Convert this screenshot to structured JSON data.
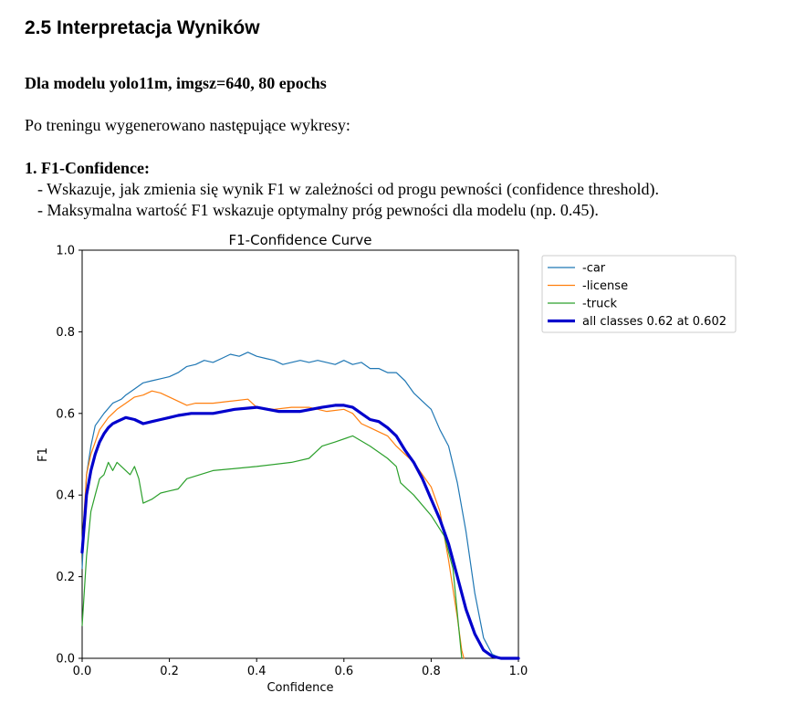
{
  "section_title": "2.5 Interpretacja Wyników",
  "model_heading": "Dla modelu yolo11m, imgsz=640, 80 epochs",
  "intro": "Po treningu wygenerowano następujące wykresy:",
  "list": {
    "item1_title": "1. F1-Confidence:",
    "bullets": [
      "- Wskazuje, jak zmienia się wynik F1 w zależności od progu pewności (confidence threshold).",
      "- Maksymalna wartość F1 wskazuje optymalny próg pewności dla modelu (np. 0.45)."
    ]
  },
  "chart_data": {
    "type": "line",
    "title": "F1-Confidence Curve",
    "xlabel": "Confidence",
    "ylabel": "F1",
    "xlim": [
      0,
      1
    ],
    "ylim": [
      0,
      1
    ],
    "xticks": [
      "0.0",
      "0.2",
      "0.4",
      "0.6",
      "0.8",
      "1.0"
    ],
    "yticks": [
      "0.0",
      "0.2",
      "0.4",
      "0.6",
      "0.8",
      "1.0"
    ],
    "legend_position": "outside-top-right",
    "series": [
      {
        "name": "-car",
        "color": "#1f77b4",
        "width": 1.2,
        "x": [
          0.0,
          0.01,
          0.02,
          0.03,
          0.05,
          0.07,
          0.09,
          0.1,
          0.12,
          0.14,
          0.16,
          0.18,
          0.2,
          0.22,
          0.24,
          0.26,
          0.28,
          0.3,
          0.32,
          0.34,
          0.36,
          0.38,
          0.4,
          0.42,
          0.44,
          0.46,
          0.48,
          0.5,
          0.52,
          0.54,
          0.56,
          0.58,
          0.6,
          0.62,
          0.64,
          0.66,
          0.68,
          0.7,
          0.72,
          0.74,
          0.76,
          0.78,
          0.8,
          0.82,
          0.84,
          0.86,
          0.88,
          0.9,
          0.92,
          0.94,
          0.96,
          0.98,
          1.0
        ],
        "y": [
          0.22,
          0.45,
          0.52,
          0.57,
          0.6,
          0.625,
          0.635,
          0.645,
          0.66,
          0.675,
          0.68,
          0.685,
          0.69,
          0.7,
          0.715,
          0.72,
          0.73,
          0.725,
          0.735,
          0.745,
          0.74,
          0.75,
          0.74,
          0.735,
          0.73,
          0.72,
          0.725,
          0.73,
          0.725,
          0.73,
          0.725,
          0.72,
          0.73,
          0.72,
          0.725,
          0.71,
          0.71,
          0.7,
          0.7,
          0.68,
          0.65,
          0.63,
          0.61,
          0.56,
          0.52,
          0.43,
          0.31,
          0.16,
          0.05,
          0.01,
          0.0,
          0.0,
          0.0
        ]
      },
      {
        "name": "-license",
        "color": "#ff7f0e",
        "width": 1.2,
        "x": [
          0.0,
          0.01,
          0.02,
          0.04,
          0.06,
          0.08,
          0.1,
          0.12,
          0.14,
          0.16,
          0.18,
          0.2,
          0.22,
          0.24,
          0.26,
          0.3,
          0.34,
          0.38,
          0.4,
          0.44,
          0.48,
          0.52,
          0.56,
          0.6,
          0.62,
          0.64,
          0.66,
          0.68,
          0.7,
          0.72,
          0.74,
          0.76,
          0.78,
          0.8,
          0.82,
          0.84,
          0.86,
          0.87,
          0.875
        ],
        "y": [
          0.28,
          0.45,
          0.5,
          0.56,
          0.59,
          0.61,
          0.625,
          0.64,
          0.645,
          0.655,
          0.65,
          0.64,
          0.63,
          0.62,
          0.625,
          0.625,
          0.63,
          0.635,
          0.615,
          0.61,
          0.615,
          0.615,
          0.605,
          0.61,
          0.6,
          0.575,
          0.565,
          0.555,
          0.545,
          0.52,
          0.5,
          0.48,
          0.45,
          0.42,
          0.36,
          0.24,
          0.1,
          0.02,
          0.0
        ]
      },
      {
        "name": "-truck",
        "color": "#2ca02c",
        "width": 1.2,
        "x": [
          0.0,
          0.01,
          0.02,
          0.03,
          0.04,
          0.05,
          0.06,
          0.07,
          0.08,
          0.09,
          0.1,
          0.11,
          0.12,
          0.13,
          0.14,
          0.16,
          0.18,
          0.2,
          0.22,
          0.24,
          0.3,
          0.4,
          0.48,
          0.52,
          0.55,
          0.58,
          0.62,
          0.66,
          0.7,
          0.72,
          0.73,
          0.76,
          0.8,
          0.83,
          0.85,
          0.87
        ],
        "y": [
          0.08,
          0.25,
          0.36,
          0.4,
          0.44,
          0.45,
          0.48,
          0.46,
          0.48,
          0.47,
          0.46,
          0.45,
          0.47,
          0.44,
          0.38,
          0.39,
          0.405,
          0.41,
          0.415,
          0.44,
          0.46,
          0.47,
          0.48,
          0.49,
          0.52,
          0.53,
          0.545,
          0.52,
          0.49,
          0.47,
          0.43,
          0.4,
          0.35,
          0.3,
          0.22,
          0.0
        ]
      },
      {
        "name": "all classes 0.62 at 0.602",
        "color": "#0000cc",
        "width": 3.2,
        "x": [
          0.0,
          0.01,
          0.02,
          0.03,
          0.04,
          0.05,
          0.06,
          0.07,
          0.08,
          0.1,
          0.12,
          0.14,
          0.16,
          0.18,
          0.2,
          0.22,
          0.25,
          0.3,
          0.35,
          0.4,
          0.45,
          0.5,
          0.55,
          0.58,
          0.6,
          0.62,
          0.64,
          0.66,
          0.68,
          0.7,
          0.72,
          0.74,
          0.76,
          0.78,
          0.8,
          0.82,
          0.84,
          0.86,
          0.88,
          0.9,
          0.92,
          0.94,
          0.96,
          0.98,
          1.0
        ],
        "y": [
          0.26,
          0.4,
          0.46,
          0.5,
          0.53,
          0.55,
          0.565,
          0.575,
          0.58,
          0.59,
          0.585,
          0.575,
          0.58,
          0.585,
          0.59,
          0.595,
          0.6,
          0.6,
          0.61,
          0.615,
          0.605,
          0.605,
          0.615,
          0.62,
          0.62,
          0.615,
          0.6,
          0.585,
          0.58,
          0.565,
          0.545,
          0.51,
          0.48,
          0.44,
          0.39,
          0.34,
          0.28,
          0.2,
          0.12,
          0.06,
          0.02,
          0.005,
          0.0,
          0.0,
          0.0
        ]
      }
    ]
  }
}
